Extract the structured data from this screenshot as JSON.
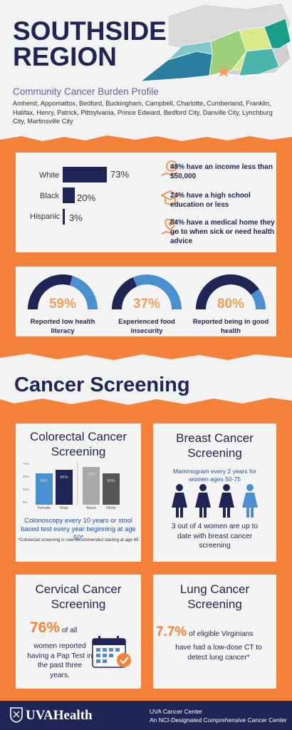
{
  "header": {
    "title_line1": "SOUTHSIDE",
    "title_line2": "REGION",
    "subtitle": "Community Cancer Burden Profile",
    "counties": "Amherst, Appomattox, Bedford, Buckingham, Campbell, Charlotte, Cumberland, Franklin, Halifax, Henry, Patrick, Pittsylvania, Prince Edward, Bedford City, Danville City, Lynchburg City, Martinsville City"
  },
  "demographics": {
    "bars": [
      {
        "label": "White",
        "value_text": "73%",
        "value": 73
      },
      {
        "label": "Black",
        "value_text": "20%",
        "value": 20
      },
      {
        "label": "Hispanic",
        "value_text": "3%",
        "value": 3
      }
    ],
    "stats": [
      {
        "icon": "money-hand-icon",
        "text": "48% have an income less than $50,000"
      },
      {
        "icon": "graduation-cap-icon",
        "text": "24% have a high school education or less"
      },
      {
        "icon": "medical-home-icon",
        "text": "84% have a medical home they go to when sick or need health advice"
      }
    ]
  },
  "gauges": [
    {
      "pct_text": "59%",
      "value": 59,
      "caption": "Reported low health literacy"
    },
    {
      "pct_text": "37%",
      "value": 37,
      "caption": "Experienced food insecurity"
    },
    {
      "pct_text": "80%",
      "value": 80,
      "caption": "Reported being in good health"
    }
  ],
  "screening": {
    "section_title": "Cancer Screening",
    "colorectal": {
      "title": "Colorectal Cancer Screening",
      "y_ticks": [
        "75%",
        "50%",
        "25%",
        "0%"
      ],
      "groups": [
        {
          "label": "Female",
          "value_text": "59%",
          "value": 59,
          "color": "#4a8fd0"
        },
        {
          "label": "Male",
          "value_text": "65%",
          "value": 65,
          "color": "#1f2554"
        },
        {
          "label": "Black",
          "value_text": "71%",
          "value": 71,
          "color": "#a9a9a9"
        },
        {
          "label": "White",
          "value_text": "59%",
          "value": 59,
          "color": "#555555"
        }
      ],
      "note": "Colonoscopy every 10 years or stool based test every year beginning at age 50*",
      "footnote": "*Colorectal screening is now recommended starting at age 45"
    },
    "breast": {
      "title": "Breast Cancer Screening",
      "note": "Mammogram every 2 years for women ages 50-75",
      "fact": "3 out of 4 women are up to date with breast cancer screening"
    },
    "cervical": {
      "title": "Cervical Cancer Screening",
      "pct": "76%",
      "text_a": " of all",
      "text_b": "women reported having a Pap Test in the past three years."
    },
    "lung": {
      "title": "Lung Cancer Screening",
      "pct": "7.7%",
      "text_a": " of eligible Virginians",
      "text_b": "have had a low-dose CT to detect lung cancer*"
    }
  },
  "footer": {
    "logo": "UVAHealth",
    "line1": "UVA Cancer Center",
    "line2": "An NCI-Designated Comprehensive Cancer Center"
  },
  "colors": {
    "navy": "#1f2554",
    "orange": "#f4813a",
    "blue": "#4a8fd0"
  }
}
